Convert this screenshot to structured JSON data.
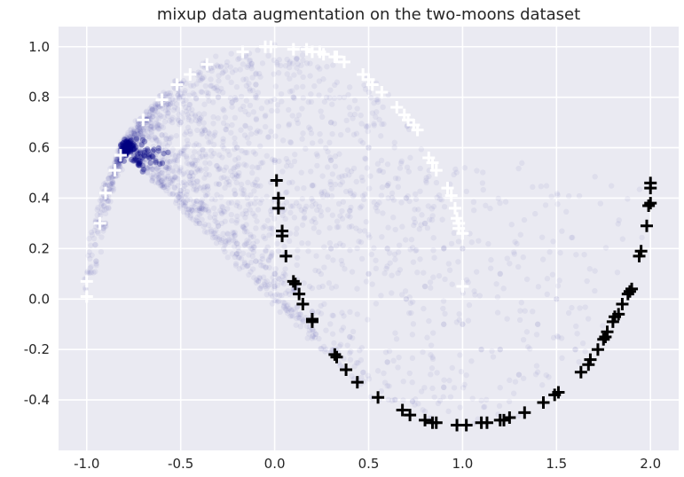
{
  "chart_data": {
    "type": "scatter",
    "title": "mixup data augmentation on the two-moons dataset",
    "xlabel": "",
    "ylabel": "",
    "xlim": [
      -1.15,
      2.15
    ],
    "ylim": [
      -0.6,
      1.08
    ],
    "xticks": [
      -1.0,
      -0.5,
      0.0,
      0.5,
      1.0,
      1.5,
      2.0
    ],
    "yticks": [
      -0.4,
      -0.2,
      0.0,
      0.2,
      0.4,
      0.6,
      0.8,
      1.0
    ],
    "grid": true,
    "background": "#eaeaf2",
    "series": [
      {
        "marker": "dot",
        "color": "#000080",
        "note_color_alpha": 0.05,
        "points": [
          [
            -0.79,
            0.61
          ],
          [
            -0.78,
            0.6
          ],
          [
            -0.76,
            0.62
          ],
          [
            -0.74,
            0.6
          ],
          [
            -0.72,
            0.59
          ],
          [
            -0.7,
            0.58
          ],
          [
            -0.68,
            0.57
          ],
          [
            -0.66,
            0.56
          ],
          [
            -0.6,
            0.5
          ],
          [
            -0.5,
            0.43
          ],
          [
            -0.4,
            0.36
          ],
          [
            -0.3,
            0.29
          ],
          [
            -0.2,
            0.22
          ],
          [
            -0.1,
            0.15
          ],
          [
            0.0,
            0.1
          ],
          [
            0.1,
            0.04
          ],
          [
            -0.6,
            0.45
          ],
          [
            -0.4,
            0.3
          ],
          [
            -0.2,
            0.18
          ],
          [
            0.0,
            0.05
          ],
          [
            0.2,
            -0.05
          ],
          [
            0.4,
            -0.15
          ],
          [
            -0.5,
            0.7
          ],
          [
            -0.3,
            0.8
          ],
          [
            -0.1,
            0.85
          ],
          [
            0.1,
            0.8
          ],
          [
            0.3,
            0.7
          ],
          [
            0.5,
            0.6
          ],
          [
            0.7,
            0.4
          ],
          [
            0.9,
            0.2
          ],
          [
            -0.2,
            0.6
          ],
          [
            0.0,
            0.55
          ],
          [
            0.2,
            0.45
          ],
          [
            0.4,
            0.35
          ],
          [
            0.6,
            0.2
          ],
          [
            0.8,
            0.05
          ],
          [
            1.0,
            -0.1
          ],
          [
            1.2,
            -0.2
          ],
          [
            -0.9,
            0.3
          ],
          [
            -0.95,
            0.15
          ],
          [
            -0.9,
            0.45
          ],
          [
            -0.85,
            0.5
          ],
          [
            -0.6,
            0.65
          ],
          [
            -0.65,
            0.75
          ],
          [
            -0.5,
            0.85
          ],
          [
            0.3,
            0.2
          ],
          [
            0.5,
            0.1
          ],
          [
            0.7,
            0.0
          ],
          [
            0.9,
            -0.1
          ],
          [
            1.1,
            -0.2
          ],
          [
            1.3,
            -0.3
          ],
          [
            0.6,
            -0.25
          ],
          [
            0.9,
            -0.35
          ],
          [
            1.4,
            -0.1
          ],
          [
            1.6,
            -0.2
          ],
          [
            1.5,
            0.0
          ],
          [
            1.2,
            0.1
          ],
          [
            1.0,
            0.2
          ],
          [
            0.8,
            0.3
          ],
          [
            0.6,
            0.45
          ],
          [
            0.3,
            0.55
          ]
        ]
      },
      {
        "marker": "plus",
        "color": "#ffffff",
        "points": [
          [
            -1.0,
            0.01
          ],
          [
            -1.0,
            0.07
          ],
          [
            -0.93,
            0.3
          ],
          [
            -0.9,
            0.42
          ],
          [
            -0.85,
            0.51
          ],
          [
            -0.82,
            0.57
          ],
          [
            -0.7,
            0.71
          ],
          [
            -0.6,
            0.79
          ],
          [
            -0.52,
            0.85
          ],
          [
            -0.45,
            0.89
          ],
          [
            -0.36,
            0.93
          ],
          [
            -0.17,
            0.98
          ],
          [
            -0.05,
            1.0
          ],
          [
            -0.02,
            1.0
          ],
          [
            0.1,
            0.99
          ],
          [
            0.17,
            0.99
          ],
          [
            0.2,
            0.98
          ],
          [
            0.24,
            0.98
          ],
          [
            0.26,
            0.97
          ],
          [
            0.32,
            0.96
          ],
          [
            0.33,
            0.96
          ],
          [
            0.37,
            0.94
          ],
          [
            0.47,
            0.89
          ],
          [
            0.5,
            0.87
          ],
          [
            0.52,
            0.85
          ],
          [
            0.57,
            0.82
          ],
          [
            0.65,
            0.76
          ],
          [
            0.69,
            0.73
          ],
          [
            0.71,
            0.71
          ],
          [
            0.74,
            0.69
          ],
          [
            0.76,
            0.67
          ],
          [
            0.82,
            0.56
          ],
          [
            0.84,
            0.54
          ],
          [
            0.86,
            0.51
          ],
          [
            0.92,
            0.44
          ],
          [
            0.94,
            0.41
          ],
          [
            0.96,
            0.36
          ],
          [
            0.97,
            0.32
          ],
          [
            0.98,
            0.3
          ],
          [
            0.98,
            0.28
          ],
          [
            1.0,
            0.26
          ],
          [
            1.0,
            0.05
          ]
        ]
      },
      {
        "marker": "plus",
        "color": "#000000",
        "points": [
          [
            0.01,
            0.47
          ],
          [
            0.02,
            0.4
          ],
          [
            0.02,
            0.36
          ],
          [
            0.04,
            0.27
          ],
          [
            0.04,
            0.25
          ],
          [
            0.06,
            0.17
          ],
          [
            0.1,
            0.07
          ],
          [
            0.11,
            0.06
          ],
          [
            0.13,
            0.02
          ],
          [
            0.15,
            -0.02
          ],
          [
            0.2,
            -0.08
          ],
          [
            0.2,
            -0.09
          ],
          [
            0.32,
            -0.22
          ],
          [
            0.33,
            -0.23
          ],
          [
            0.38,
            -0.28
          ],
          [
            0.44,
            -0.33
          ],
          [
            0.55,
            -0.39
          ],
          [
            0.68,
            -0.44
          ],
          [
            0.72,
            -0.46
          ],
          [
            0.8,
            -0.48
          ],
          [
            0.84,
            -0.49
          ],
          [
            0.86,
            -0.49
          ],
          [
            0.97,
            -0.5
          ],
          [
            1.02,
            -0.5
          ],
          [
            1.1,
            -0.49
          ],
          [
            1.13,
            -0.49
          ],
          [
            1.2,
            -0.48
          ],
          [
            1.22,
            -0.48
          ],
          [
            1.25,
            -0.47
          ],
          [
            1.33,
            -0.45
          ],
          [
            1.43,
            -0.41
          ],
          [
            1.49,
            -0.38
          ],
          [
            1.51,
            -0.37
          ],
          [
            1.63,
            -0.29
          ],
          [
            1.67,
            -0.26
          ],
          [
            1.68,
            -0.24
          ],
          [
            1.72,
            -0.2
          ],
          [
            1.75,
            -0.16
          ],
          [
            1.76,
            -0.15
          ],
          [
            1.77,
            -0.13
          ],
          [
            1.8,
            -0.09
          ],
          [
            1.81,
            -0.07
          ],
          [
            1.83,
            -0.06
          ],
          [
            1.85,
            -0.02
          ],
          [
            1.88,
            0.02
          ],
          [
            1.89,
            0.03
          ],
          [
            1.9,
            0.04
          ],
          [
            1.94,
            0.17
          ],
          [
            1.95,
            0.19
          ],
          [
            1.98,
            0.29
          ],
          [
            1.99,
            0.37
          ],
          [
            2.0,
            0.38
          ],
          [
            2.0,
            0.44
          ],
          [
            2.0,
            0.46
          ]
        ]
      }
    ]
  }
}
